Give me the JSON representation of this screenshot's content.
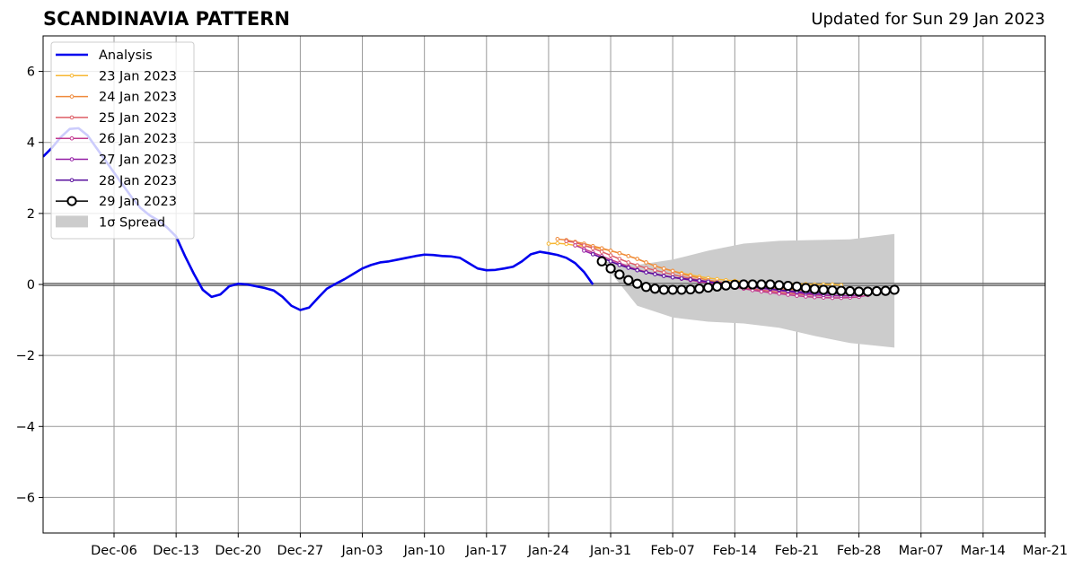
{
  "chart_data": {
    "type": "line",
    "title": "SCANDINAVIA PATTERN",
    "subtitle": "Updated for Sun 29 Jan 2023",
    "xlabel": "",
    "ylabel": "",
    "xlim": [
      "2022-11-28",
      "2023-03-21"
    ],
    "ylim": [
      -7,
      7
    ],
    "xticks": [
      "2022-12-06",
      "2022-12-13",
      "2022-12-20",
      "2022-12-27",
      "2023-01-03",
      "2023-01-10",
      "2023-01-17",
      "2023-01-24",
      "2023-01-31",
      "2023-02-07",
      "2023-02-14",
      "2023-02-21",
      "2023-02-28",
      "2023-03-07",
      "2023-03-14",
      "2023-03-21"
    ],
    "xtick_labels": [
      "Dec-06",
      "Dec-13",
      "Dec-20",
      "Dec-27",
      "Jan-03",
      "Jan-10",
      "Jan-17",
      "Jan-24",
      "Jan-31",
      "Feb-07",
      "Feb-14",
      "Feb-21",
      "Feb-28",
      "Mar-07",
      "Mar-14",
      "Mar-21"
    ],
    "yticks": [
      -6,
      -4,
      -2,
      0,
      2,
      4,
      6
    ],
    "ytick_labels": [
      "−6",
      "−4",
      "−2",
      "0",
      "2",
      "4",
      "6"
    ],
    "grid": true,
    "legend_position": "top-left",
    "colors": {
      "analysis": "#0000ee",
      "spread": "#cccccc",
      "grid": "#999999",
      "d23": "#f7b733",
      "d24": "#ef8a3c",
      "d25": "#dd5e66",
      "d26": "#c2398f",
      "d27": "#951fa6",
      "d28": "#5a109e",
      "d29": "#000000"
    },
    "series": [
      {
        "name": "Analysis",
        "style": "analysis",
        "x": [
          "2022-11-28",
          "2022-11-29",
          "2022-11-30",
          "2022-12-01",
          "2022-12-02",
          "2022-12-03",
          "2022-12-04",
          "2022-12-05",
          "2022-12-06",
          "2022-12-07",
          "2022-12-08",
          "2022-12-09",
          "2022-12-10",
          "2022-12-11",
          "2022-12-12",
          "2022-12-13",
          "2022-12-14",
          "2022-12-15",
          "2022-12-16",
          "2022-12-17",
          "2022-12-18",
          "2022-12-19",
          "2022-12-20",
          "2022-12-21",
          "2022-12-22",
          "2022-12-23",
          "2022-12-24",
          "2022-12-25",
          "2022-12-26",
          "2022-12-27",
          "2022-12-28",
          "2022-12-29",
          "2022-12-30",
          "2022-12-31",
          "2023-01-01",
          "2023-01-02",
          "2023-01-03",
          "2023-01-04",
          "2023-01-05",
          "2023-01-06",
          "2023-01-07",
          "2023-01-08",
          "2023-01-09",
          "2023-01-10",
          "2023-01-11",
          "2023-01-12",
          "2023-01-13",
          "2023-01-14",
          "2023-01-15",
          "2023-01-16",
          "2023-01-17",
          "2023-01-18",
          "2023-01-19",
          "2023-01-20",
          "2023-01-21",
          "2023-01-22",
          "2023-01-23",
          "2023-01-24",
          "2023-01-25",
          "2023-01-26",
          "2023-01-27",
          "2023-01-28",
          "2023-01-29"
        ],
        "y": [
          3.6,
          3.85,
          4.15,
          4.38,
          4.4,
          4.2,
          3.85,
          3.5,
          3.15,
          2.8,
          2.45,
          2.15,
          1.95,
          1.8,
          1.6,
          1.35,
          0.8,
          0.3,
          -0.15,
          -0.35,
          -0.28,
          -0.05,
          0.02,
          0.0,
          -0.05,
          -0.1,
          -0.17,
          -0.35,
          -0.6,
          -0.72,
          -0.65,
          -0.38,
          -0.12,
          0.02,
          0.15,
          0.3,
          0.45,
          0.55,
          0.62,
          0.65,
          0.7,
          0.75,
          0.8,
          0.84,
          0.83,
          0.8,
          0.79,
          0.75,
          0.6,
          0.45,
          0.4,
          0.41,
          0.45,
          0.5,
          0.65,
          0.85,
          0.92,
          0.88,
          0.83,
          0.75,
          0.6,
          0.35,
          0.0
        ]
      },
      {
        "name": "23 Jan 2023",
        "style": "d23",
        "x": [
          "2023-01-24",
          "2023-01-25",
          "2023-01-26",
          "2023-01-27",
          "2023-01-28",
          "2023-01-29",
          "2023-01-30",
          "2023-01-31",
          "2023-02-01",
          "2023-02-02",
          "2023-02-03",
          "2023-02-04",
          "2023-02-05",
          "2023-02-06",
          "2023-02-07",
          "2023-02-08",
          "2023-02-09",
          "2023-02-10",
          "2023-02-11",
          "2023-02-12",
          "2023-02-13",
          "2023-02-14",
          "2023-02-15",
          "2023-02-16",
          "2023-02-17",
          "2023-02-18",
          "2023-02-19",
          "2023-02-20",
          "2023-02-21",
          "2023-02-22",
          "2023-02-23",
          "2023-02-24",
          "2023-02-25",
          "2023-02-26"
        ],
        "y": [
          1.15,
          1.16,
          1.14,
          1.1,
          1.08,
          1.05,
          1.0,
          0.95,
          0.88,
          0.8,
          0.72,
          0.62,
          0.52,
          0.44,
          0.38,
          0.32,
          0.27,
          0.22,
          0.18,
          0.15,
          0.12,
          0.1,
          0.08,
          0.06,
          0.05,
          0.04,
          0.03,
          0.02,
          0.02,
          0.01,
          0.0,
          0.0,
          0.0,
          -0.02
        ]
      },
      {
        "name": "24 Jan 2023",
        "style": "d24",
        "x": [
          "2023-01-25",
          "2023-01-26",
          "2023-01-27",
          "2023-01-28",
          "2023-01-29",
          "2023-01-30",
          "2023-01-31",
          "2023-02-01",
          "2023-02-02",
          "2023-02-03",
          "2023-02-04",
          "2023-02-05",
          "2023-02-06",
          "2023-02-07",
          "2023-02-08",
          "2023-02-09",
          "2023-02-10",
          "2023-02-11",
          "2023-02-12",
          "2023-02-13",
          "2023-02-14",
          "2023-02-15",
          "2023-02-16",
          "2023-02-17",
          "2023-02-18",
          "2023-02-19",
          "2023-02-20",
          "2023-02-21",
          "2023-02-22",
          "2023-02-23",
          "2023-02-24",
          "2023-02-25",
          "2023-02-26",
          "2023-02-27"
        ],
        "y": [
          1.28,
          1.25,
          1.2,
          1.15,
          1.08,
          1.02,
          0.95,
          0.88,
          0.8,
          0.72,
          0.62,
          0.52,
          0.45,
          0.38,
          0.3,
          0.24,
          0.18,
          0.12,
          0.08,
          0.05,
          0.02,
          0.0,
          -0.05,
          -0.08,
          -0.1,
          -0.12,
          -0.14,
          -0.15,
          -0.17,
          -0.18,
          -0.19,
          -0.2,
          -0.2,
          -0.2
        ]
      },
      {
        "name": "25 Jan 2023",
        "style": "d25",
        "x": [
          "2023-01-26",
          "2023-01-27",
          "2023-01-28",
          "2023-01-29",
          "2023-01-30",
          "2023-01-31",
          "2023-02-01",
          "2023-02-02",
          "2023-02-03",
          "2023-02-04",
          "2023-02-05",
          "2023-02-06",
          "2023-02-07",
          "2023-02-08",
          "2023-02-09",
          "2023-02-10",
          "2023-02-11",
          "2023-02-12",
          "2023-02-13",
          "2023-02-14",
          "2023-02-15",
          "2023-02-16",
          "2023-02-17",
          "2023-02-18",
          "2023-02-19",
          "2023-02-20",
          "2023-02-21",
          "2023-02-22",
          "2023-02-23",
          "2023-02-24",
          "2023-02-25",
          "2023-02-26",
          "2023-02-27",
          "2023-02-28"
        ],
        "y": [
          1.22,
          1.18,
          1.1,
          1.02,
          0.92,
          0.82,
          0.72,
          0.62,
          0.54,
          0.46,
          0.4,
          0.34,
          0.28,
          0.22,
          0.17,
          0.12,
          0.08,
          0.04,
          0.0,
          -0.05,
          -0.1,
          -0.13,
          -0.16,
          -0.19,
          -0.22,
          -0.25,
          -0.27,
          -0.29,
          -0.3,
          -0.31,
          -0.32,
          -0.32,
          -0.32,
          -0.3
        ]
      },
      {
        "name": "26 Jan 2023",
        "style": "d26",
        "x": [
          "2023-01-27",
          "2023-01-28",
          "2023-01-29",
          "2023-01-30",
          "2023-01-31",
          "2023-02-01",
          "2023-02-02",
          "2023-02-03",
          "2023-02-04",
          "2023-02-05",
          "2023-02-06",
          "2023-02-07",
          "2023-02-08",
          "2023-02-09",
          "2023-02-10",
          "2023-02-11",
          "2023-02-12",
          "2023-02-13",
          "2023-02-14",
          "2023-02-15",
          "2023-02-16",
          "2023-02-17",
          "2023-02-18",
          "2023-02-19",
          "2023-02-20",
          "2023-02-21",
          "2023-02-22",
          "2023-02-23",
          "2023-02-24",
          "2023-02-25",
          "2023-02-26",
          "2023-02-27",
          "2023-02-28",
          "2023-03-01"
        ],
        "y": [
          1.1,
          1.0,
          0.9,
          0.8,
          0.7,
          0.6,
          0.5,
          0.42,
          0.35,
          0.3,
          0.25,
          0.2,
          0.16,
          0.12,
          0.08,
          0.04,
          0.0,
          -0.04,
          -0.08,
          -0.12,
          -0.16,
          -0.2,
          -0.23,
          -0.26,
          -0.29,
          -0.32,
          -0.34,
          -0.36,
          -0.37,
          -0.38,
          -0.38,
          -0.37,
          -0.35,
          -0.3
        ]
      },
      {
        "name": "27 Jan 2023",
        "style": "d27",
        "x": [
          "2023-01-28",
          "2023-01-29",
          "2023-01-30",
          "2023-01-31",
          "2023-02-01",
          "2023-02-02",
          "2023-02-03",
          "2023-02-04",
          "2023-02-05",
          "2023-02-06",
          "2023-02-07",
          "2023-02-08",
          "2023-02-09",
          "2023-02-10",
          "2023-02-11",
          "2023-02-12",
          "2023-02-13",
          "2023-02-14",
          "2023-02-15",
          "2023-02-16",
          "2023-02-17",
          "2023-02-18",
          "2023-02-19",
          "2023-02-20",
          "2023-02-21",
          "2023-02-22",
          "2023-02-23",
          "2023-02-24",
          "2023-02-25",
          "2023-02-26",
          "2023-02-27",
          "2023-02-28"
        ],
        "y": [
          0.95,
          0.85,
          0.75,
          0.65,
          0.55,
          0.47,
          0.4,
          0.34,
          0.29,
          0.24,
          0.2,
          0.16,
          0.13,
          0.1,
          0.07,
          0.04,
          0.01,
          -0.02,
          -0.05,
          -0.08,
          -0.11,
          -0.14,
          -0.17,
          -0.2,
          -0.23,
          -0.26,
          -0.28,
          -0.3,
          -0.31,
          -0.32,
          -0.32,
          -0.3
        ]
      },
      {
        "name": "28 Jan 2023",
        "style": "d28",
        "x": [
          "2023-01-29",
          "2023-01-30",
          "2023-01-31",
          "2023-02-01",
          "2023-02-02",
          "2023-02-03",
          "2023-02-04",
          "2023-02-05",
          "2023-02-06",
          "2023-02-07",
          "2023-02-08",
          "2023-02-09",
          "2023-02-10",
          "2023-02-11",
          "2023-02-12",
          "2023-02-13",
          "2023-02-14",
          "2023-02-15",
          "2023-02-16",
          "2023-02-17",
          "2023-02-18",
          "2023-02-19",
          "2023-02-20",
          "2023-02-21",
          "2023-02-22",
          "2023-02-23",
          "2023-02-24",
          "2023-02-25",
          "2023-02-26",
          "2023-02-27",
          "2023-02-28",
          "2023-03-01"
        ],
        "y": [
          0.85,
          0.75,
          0.65,
          0.55,
          0.47,
          0.4,
          0.34,
          0.29,
          0.24,
          0.2,
          0.17,
          0.14,
          0.11,
          0.08,
          0.05,
          0.03,
          0.0,
          -0.03,
          -0.06,
          -0.09,
          -0.12,
          -0.15,
          -0.18,
          -0.2,
          -0.22,
          -0.24,
          -0.25,
          -0.25,
          -0.25,
          -0.24,
          -0.22,
          -0.2
        ]
      },
      {
        "name": "29 Jan 2023",
        "style": "d29",
        "x": [
          "2023-01-30",
          "2023-01-31",
          "2023-02-01",
          "2023-02-02",
          "2023-02-03",
          "2023-02-04",
          "2023-02-05",
          "2023-02-06",
          "2023-02-07",
          "2023-02-08",
          "2023-02-09",
          "2023-02-10",
          "2023-02-11",
          "2023-02-12",
          "2023-02-13",
          "2023-02-14",
          "2023-02-15",
          "2023-02-16",
          "2023-02-17",
          "2023-02-18",
          "2023-02-19",
          "2023-02-20",
          "2023-02-21",
          "2023-02-22",
          "2023-02-23",
          "2023-02-24",
          "2023-02-25",
          "2023-02-26",
          "2023-02-27",
          "2023-02-28",
          "2023-03-01",
          "2023-03-02",
          "2023-03-03",
          "2023-03-04"
        ],
        "y": [
          0.65,
          0.45,
          0.28,
          0.12,
          0.02,
          -0.07,
          -0.12,
          -0.15,
          -0.15,
          -0.15,
          -0.14,
          -0.12,
          -0.09,
          -0.06,
          -0.03,
          -0.01,
          0.0,
          0.0,
          0.0,
          0.0,
          -0.02,
          -0.04,
          -0.06,
          -0.1,
          -0.13,
          -0.15,
          -0.17,
          -0.18,
          -0.19,
          -0.2,
          -0.2,
          -0.19,
          -0.18,
          -0.15
        ]
      }
    ],
    "spread": {
      "name": "1σ Spread",
      "x": [
        "2023-01-30",
        "2023-02-03",
        "2023-02-07",
        "2023-02-11",
        "2023-02-15",
        "2023-02-19",
        "2023-02-23",
        "2023-02-27",
        "2023-03-04"
      ],
      "upper": [
        0.65,
        0.55,
        0.7,
        0.95,
        1.15,
        1.23,
        1.25,
        1.27,
        1.42
      ],
      "lower": [
        0.65,
        -0.6,
        -0.93,
        -1.05,
        -1.1,
        -1.22,
        -1.45,
        -1.65,
        -1.78
      ]
    }
  }
}
